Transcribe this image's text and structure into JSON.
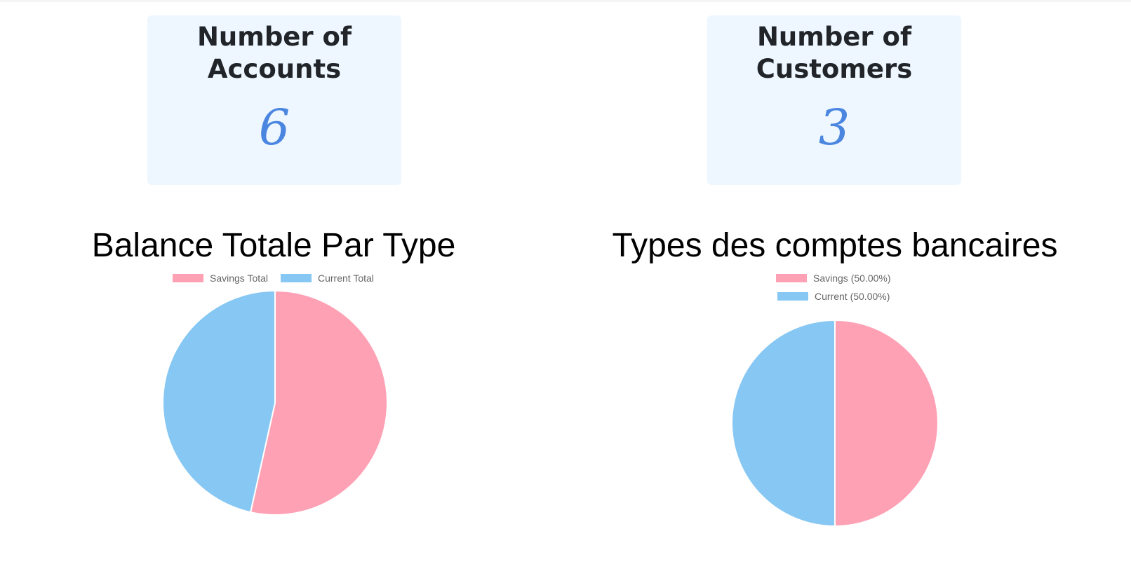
{
  "cards": {
    "accounts": {
      "title": "Number of\nAccounts",
      "value": "6"
    },
    "customers": {
      "title": "Number of\nCustomers",
      "value": "3"
    }
  },
  "colors": {
    "savings": "#ffa1b5",
    "current": "#86c7f3",
    "accent": "#4a86e0",
    "card_bg": "#eef7ff"
  },
  "chart_data": [
    {
      "type": "pie",
      "title": "Balance Totale Par Type",
      "categories": [
        "Savings Total",
        "Current Total"
      ],
      "values": [
        53.5,
        46.5
      ],
      "legend": "top"
    },
    {
      "type": "pie",
      "title": "Types des comptes bancaires",
      "categories": [
        "Savings (50.00%)",
        "Current (50.00%)"
      ],
      "values": [
        50,
        50
      ],
      "legend": "top"
    }
  ]
}
